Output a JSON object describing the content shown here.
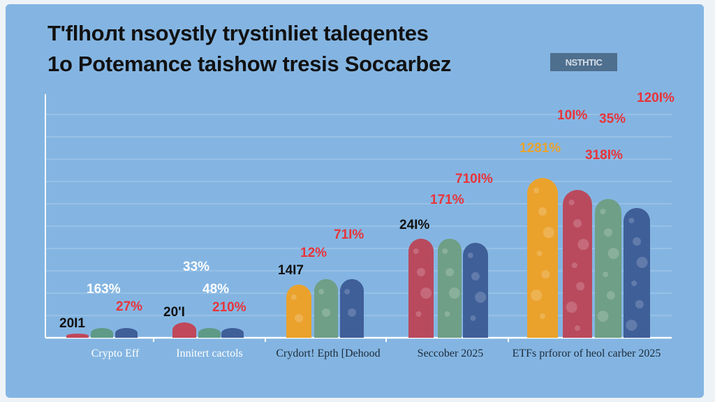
{
  "chart_data": {
    "type": "bar",
    "title_line1": "T'flhoлt nsoystly trystinliet taleqentes",
    "title_line2": "1o Potemance taishow tresis Soccarbez",
    "badge": "NSTHTIC",
    "xlabel": "",
    "ylabel": "",
    "ylim": [
      0,
      100
    ],
    "grid": true,
    "categories": [
      "Crypto Eff",
      "Innitert cactols",
      "Crydort! Epth [Dehood",
      "Seccober 2025",
      "ETFs prforor of heol carber 2025"
    ],
    "groups": [
      {
        "bars": [
          {
            "color": "#c0485a",
            "value": 1.7
          },
          {
            "color": "#5f9a86",
            "value": 4
          },
          {
            "color": "#3f5f99",
            "value": 4
          }
        ],
        "labels": [
          {
            "text": "20I1",
            "color": "#111111"
          },
          {
            "text": "163%",
            "color": "#ffffff"
          },
          {
            "text": "27%",
            "color": "#e8343a"
          }
        ]
      },
      {
        "bars": [
          {
            "color": "#c0485a",
            "value": 6.3
          },
          {
            "color": "#5f9a86",
            "value": 4
          },
          {
            "color": "#3f5f99",
            "value": 4
          }
        ],
        "labels": [
          {
            "text": "20'I",
            "color": "#111111"
          },
          {
            "text": "33%",
            "color": "#ffffff"
          },
          {
            "text": "48%",
            "color": "#ffffff"
          },
          {
            "text": "210%",
            "color": "#e8343a"
          }
        ]
      },
      {
        "bars": [
          {
            "color": "#eaa22c",
            "value": 21.8
          },
          {
            "color": "#6f9f86",
            "value": 24.1
          },
          {
            "color": "#3f5f99",
            "value": 24.1
          }
        ],
        "labels": [
          {
            "text": "14I7",
            "color": "#111111"
          },
          {
            "text": "12%",
            "color": "#e8343a"
          },
          {
            "text": "71I%",
            "color": "#e8343a"
          }
        ]
      },
      {
        "bars": [
          {
            "color": "#b94a5e",
            "value": 40.7
          },
          {
            "color": "#6f9f86",
            "value": 40.7
          },
          {
            "color": "#3f5f99",
            "value": 39
          }
        ],
        "labels": [
          {
            "text": "24I%",
            "color": "#111111"
          },
          {
            "text": "171%",
            "color": "#e8343a"
          },
          {
            "text": "710I%",
            "color": "#e8343a"
          }
        ]
      },
      {
        "bars": [
          {
            "color": "#eaa22c",
            "value": 65.6
          },
          {
            "color": "#b94a5e",
            "value": 60.7
          },
          {
            "color": "#6f9f86",
            "value": 57
          },
          {
            "color": "#3f5f99",
            "value": 53.3
          }
        ],
        "labels": [
          {
            "text": "1281%",
            "color": "#eaa22c"
          },
          {
            "text": "10I%",
            "color": "#e8343a"
          },
          {
            "text": "35%",
            "color": "#e8343a"
          },
          {
            "text": "318I%",
            "color": "#e8343a"
          },
          {
            "text": "120I%",
            "color": "#e8343a"
          }
        ]
      }
    ]
  }
}
